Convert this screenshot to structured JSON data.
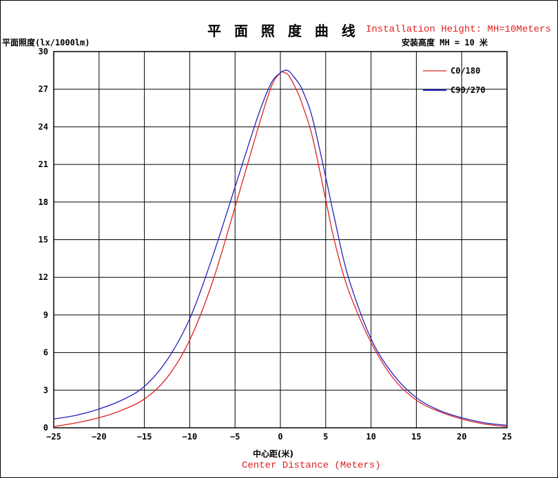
{
  "header": {
    "title_cn": "平 面 照 度 曲 线",
    "title_en": "Installation Height: MH=10Meters",
    "y_axis_label": "平面照度(lx/1000lm)",
    "mounting_height_label": "安装高度 MH = 10 米"
  },
  "footer": {
    "x_axis_label_cn": "中心距(米)",
    "x_axis_label_en": "Center Distance (Meters)"
  },
  "colors": {
    "accent_red": "#e02020",
    "series_red": "#e02020",
    "series_blue": "#2020c0",
    "grid": "#000000"
  },
  "chart_data": {
    "type": "line",
    "xlabel": "中心距(米)",
    "ylabel": "平面照度(lx/1000lm)",
    "xlim": [
      -25,
      25
    ],
    "ylim": [
      0,
      30
    ],
    "xticks": [
      -25,
      -20,
      -15,
      -10,
      -5,
      0,
      5,
      10,
      15,
      20,
      25
    ],
    "yticks": [
      0,
      3,
      6,
      9,
      12,
      15,
      18,
      21,
      24,
      27,
      30
    ],
    "grid": true,
    "legend_position": "top-right",
    "series": [
      {
        "name": "C0/180",
        "color": "#e02020",
        "x": [
          -25,
          -22.5,
          -20,
          -17.5,
          -15,
          -12.5,
          -10,
          -7.5,
          -5,
          -2.5,
          -1,
          0,
          0.5,
          1,
          2,
          2.5,
          3.5,
          5,
          6,
          7.5,
          10,
          12.5,
          15,
          17.5,
          20,
          22.5,
          25
        ],
        "y": [
          0.1,
          0.4,
          0.8,
          1.4,
          2.3,
          4.0,
          7.0,
          11.6,
          17.6,
          23.8,
          27.2,
          28.3,
          28.3,
          28.0,
          26.6,
          25.6,
          23.3,
          18.2,
          14.8,
          11.0,
          6.8,
          3.9,
          2.2,
          1.3,
          0.7,
          0.3,
          0.1
        ]
      },
      {
        "name": "C90/270",
        "color": "#2020c0",
        "x": [
          -25,
          -22.5,
          -20,
          -17.5,
          -15,
          -12.5,
          -10,
          -7.5,
          -5,
          -2.5,
          -1,
          0,
          0.5,
          1,
          2,
          2.5,
          3.5,
          5,
          6,
          7.5,
          10,
          12.5,
          15,
          17.5,
          20,
          22.5,
          25
        ],
        "y": [
          0.7,
          1.0,
          1.5,
          2.2,
          3.3,
          5.4,
          8.7,
          13.6,
          19.2,
          24.8,
          27.5,
          28.3,
          28.5,
          28.4,
          27.5,
          26.8,
          24.8,
          20.0,
          16.6,
          12.0,
          7.1,
          4.2,
          2.4,
          1.4,
          0.8,
          0.4,
          0.2
        ]
      }
    ]
  }
}
